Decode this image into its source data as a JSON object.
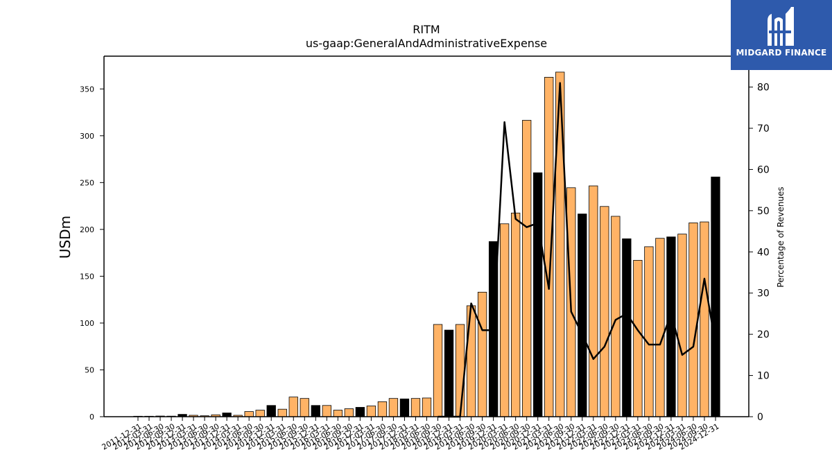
{
  "brand": {
    "name": "MIDGARD FINANCE",
    "bg": "#2e5aac"
  },
  "chart_data": {
    "type": "bar",
    "title": "RITM",
    "subtitle": "us-gaap:GeneralAndAdministrativeExpense",
    "ylabel": "USDm",
    "y2label": "Percentage of Revenues",
    "ylim": [
      0,
      385
    ],
    "y2lim": [
      0,
      87.5
    ],
    "yticks": [
      0,
      50,
      100,
      150,
      200,
      250,
      300,
      350
    ],
    "y2ticks": [
      0,
      10,
      20,
      30,
      40,
      50,
      60,
      70,
      80
    ],
    "colors": {
      "quarterly": "#ffb366",
      "annual": "#000000",
      "line": "#000000"
    },
    "categories": [
      "2011-12-31",
      "2012-03-31",
      "2012-06-30",
      "2012-09-30",
      "2012-12-31",
      "2013-03-31",
      "2013-06-30",
      "2013-09-30",
      "2013-12-31",
      "2014-03-31",
      "2014-06-30",
      "2014-09-30",
      "2014-12-31",
      "2015-03-31",
      "2015-06-30",
      "2015-09-30",
      "2015-12-31",
      "2016-03-31",
      "2016-06-30",
      "2016-09-30",
      "2016-12-31",
      "2017-03-31",
      "2017-06-30",
      "2017-09-30",
      "2017-12-31",
      "2018-03-31",
      "2018-06-30",
      "2018-09-30",
      "2018-12-31",
      "2019-03-31",
      "2019-06-30",
      "2019-09-30",
      "2019-12-31",
      "2020-03-31",
      "2020-06-30",
      "2020-09-30",
      "2020-12-31",
      "2021-03-31",
      "2021-06-30",
      "2021-09-30",
      "2021-12-31",
      "2022-03-31",
      "2022-06-30",
      "2022-09-30",
      "2022-12-31",
      "2023-03-31",
      "2023-06-30",
      "2023-09-30",
      "2023-12-31",
      "2024-03-31",
      "2024-06-30",
      "2024-09-30",
      "2024-12-31"
    ],
    "period_type": [
      "Q",
      "Q",
      "Q",
      "Q",
      "A",
      "Q",
      "Q",
      "Q",
      "A",
      "Q",
      "Q",
      "Q",
      "A",
      "Q",
      "Q",
      "Q",
      "A",
      "Q",
      "Q",
      "Q",
      "A",
      "Q",
      "Q",
      "Q",
      "A",
      "Q",
      "Q",
      "Q",
      "A",
      "Q",
      "Q",
      "Q",
      "A",
      "Q",
      "Q",
      "Q",
      "A",
      "Q",
      "Q",
      "Q",
      "A",
      "Q",
      "Q",
      "Q",
      "A",
      "Q",
      "Q",
      "Q",
      "A",
      "Q",
      "Q",
      "Q",
      "A"
    ],
    "values": [
      0.5,
      0.5,
      0.7,
      0.6,
      2.5,
      1.5,
      1.0,
      2.0,
      4.0,
      1.5,
      5.5,
      7.0,
      12.0,
      8.0,
      21.0,
      19.5,
      12.0,
      12.0,
      7.0,
      8.5,
      10.0,
      11.5,
      16.0,
      19.5,
      19.0,
      19.5,
      20.0,
      98.5,
      92.5,
      98.5,
      118.5,
      133.0,
      187.0,
      206.0,
      217.5,
      316.5,
      260.5,
      362.5,
      368.0,
      244.5,
      216.5,
      246.5,
      224.5,
      214.0,
      190.0,
      167.0,
      181.5,
      190.5,
      192.0,
      195.0,
      207.0,
      208.0,
      256.0
    ],
    "line_start_index": 27,
    "percent_of_revenues": [
      null,
      null,
      null,
      null,
      null,
      null,
      null,
      null,
      null,
      null,
      null,
      null,
      null,
      null,
      null,
      null,
      null,
      null,
      null,
      null,
      null,
      null,
      null,
      null,
      null,
      null,
      null,
      0.0,
      0.0,
      0.0,
      27.5,
      21.0,
      21.0,
      71.5,
      48.0,
      46.0,
      47.0,
      31.0,
      81.0,
      25.5,
      20.0,
      14.0,
      17.0,
      23.5,
      25.0,
      21.0,
      17.5,
      17.5,
      25.0,
      15.0,
      17.0,
      33.5,
      17.5
    ]
  }
}
